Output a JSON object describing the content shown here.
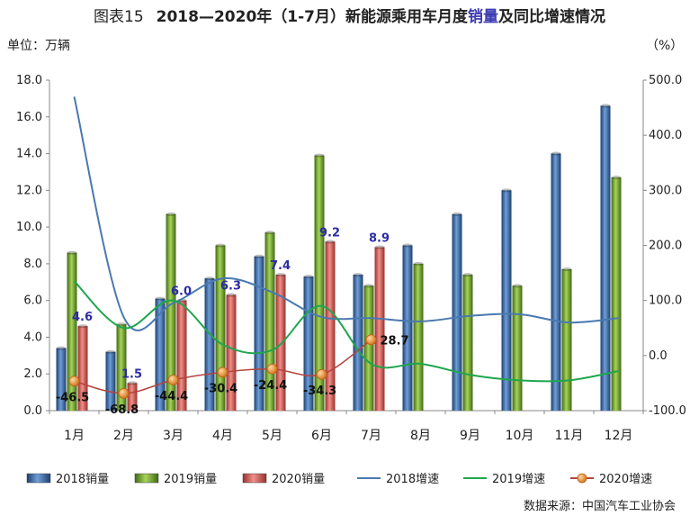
{
  "title": {
    "number": "图表15",
    "pre": "2018—2020年（1-7月）新能源乘用车月度",
    "highlight": "销量",
    "post": "及同比增速情况"
  },
  "left_axis_label": "单位：万辆",
  "right_axis_label": "（%）",
  "source": "数据来源：中国汽车工业协会",
  "colors": {
    "s2018": "#2e5f9e",
    "s2019": "#6a9a2a",
    "s2020": "#c8504a",
    "g2018": "#4a79b0",
    "g2019": "#1fa64d",
    "g2020": "#b5443f",
    "marker2020": "#e08a2a"
  },
  "chart_data": {
    "type": "bar",
    "categories": [
      "1月",
      "2月",
      "3月",
      "4月",
      "5月",
      "6月",
      "7月",
      "8月",
      "9月",
      "10月",
      "11月",
      "12月"
    ],
    "ylim_left": [
      0,
      18
    ],
    "yticks_left": [
      "0.0",
      "2.0",
      "4.0",
      "6.0",
      "8.0",
      "10.0",
      "12.0",
      "14.0",
      "16.0",
      "18.0"
    ],
    "ylim_right": [
      -100,
      500
    ],
    "yticks_right": [
      "-100.0",
      "0.0",
      "100.0",
      "200.0",
      "300.0",
      "400.0",
      "500.0"
    ],
    "bar_series": [
      {
        "name": "2018销量",
        "values": [
          3.4,
          3.2,
          6.1,
          7.2,
          8.4,
          7.3,
          7.4,
          9.0,
          10.7,
          12.0,
          14.0,
          16.6
        ]
      },
      {
        "name": "2019销量",
        "values": [
          8.6,
          4.7,
          10.7,
          9.0,
          9.7,
          13.9,
          6.8,
          8.0,
          7.4,
          6.8,
          7.7,
          12.7
        ]
      },
      {
        "name": "2020销量",
        "values": [
          4.6,
          1.5,
          6.0,
          6.3,
          7.4,
          9.2,
          8.9
        ]
      }
    ],
    "line_series": [
      {
        "name": "2018增速",
        "values": [
          470,
          70,
          95,
          140,
          115,
          70,
          68,
          62,
          72,
          75,
          60,
          68
        ]
      },
      {
        "name": "2019增速",
        "values": [
          135,
          50,
          100,
          20,
          10,
          90,
          -15,
          -15,
          -35,
          -45,
          -45,
          -28
        ]
      },
      {
        "name": "2020增速",
        "values": [
          -46.5,
          -68.8,
          -44.4,
          -30.4,
          -24.4,
          -34.3,
          28.7
        ]
      }
    ],
    "labels_2020_sales": [
      "4.6",
      "1.5",
      "6.0",
      "6.3",
      "7.4",
      "9.2",
      "8.9"
    ],
    "labels_2020_growth": [
      "-46.5",
      "-68.8",
      "-44.4",
      "-30.4",
      "-24.4",
      "-34.3",
      "28.7"
    ],
    "legend": [
      "2018销量",
      "2019销量",
      "2020销量",
      "2018增速",
      "2019增速",
      "2020增速"
    ]
  }
}
